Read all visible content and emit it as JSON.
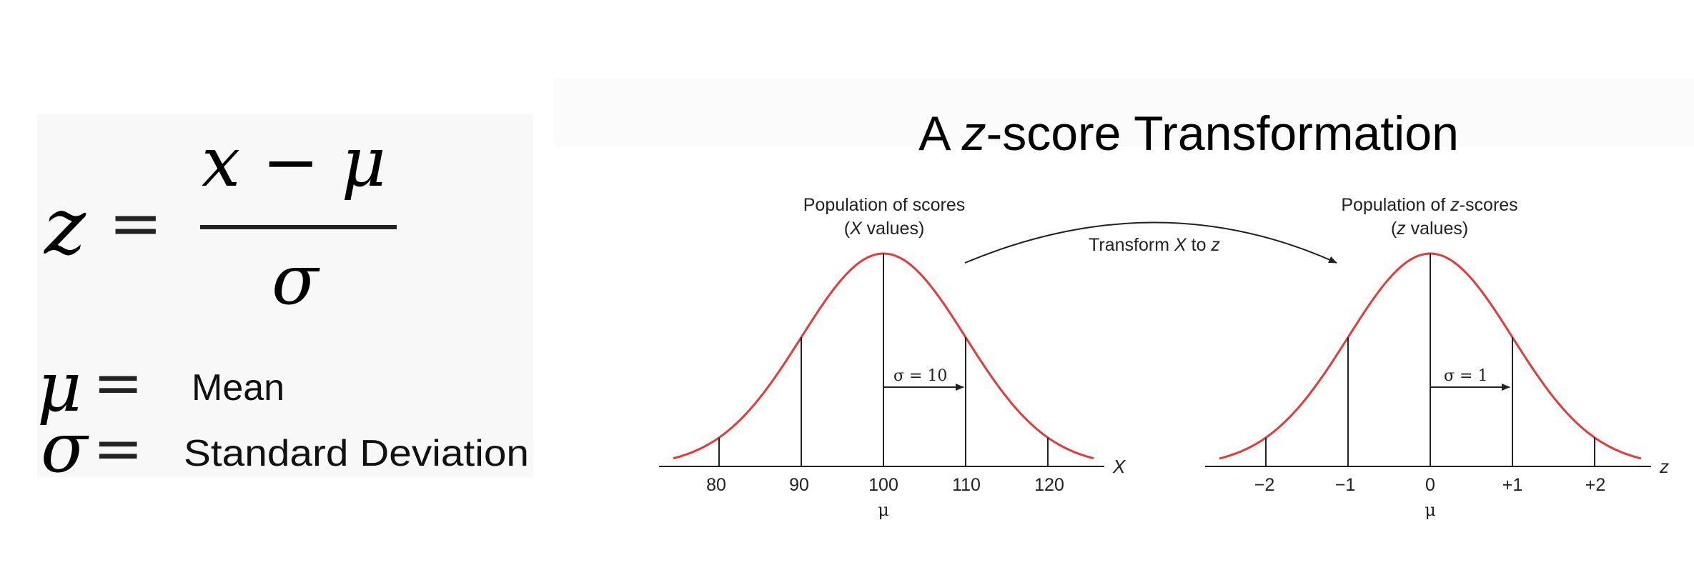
{
  "formula": {
    "lhs": "z",
    "equals": "=",
    "numerator": "x − μ",
    "denominator": "σ"
  },
  "legend": [
    {
      "symbol": "μ",
      "equals": "=",
      "meaning": "Mean"
    },
    {
      "symbol": "σ",
      "equals": "=",
      "meaning": "Standard Deviation"
    }
  ],
  "diagram": {
    "title_prefix": "A ",
    "title_italic": "z",
    "title_suffix": "-score Transformation",
    "transform_label": {
      "a": "Transform ",
      "b": "X",
      "c": " to ",
      "d": "z"
    },
    "left": {
      "heading_line1": "Population of scores",
      "heading_line2_open": "(",
      "heading_line2_var": "X",
      "heading_line2_rest": " values)",
      "sigma_label": "σ = 10",
      "axis_label": "X",
      "ticks": [
        "80",
        "90",
        "100",
        "110",
        "120"
      ],
      "mu_label": "μ"
    },
    "right": {
      "heading_line1_a": "Population of ",
      "heading_line1_var": "z",
      "heading_line1_b": "-scores",
      "heading_line2_open": "(",
      "heading_line2_var": "z",
      "heading_line2_rest": " values)",
      "sigma_label": "σ = 1",
      "axis_label": "z",
      "ticks": [
        "−2",
        "−1",
        "0",
        "+1",
        "+2"
      ],
      "mu_label": "μ"
    },
    "curve_color": "#e03c3c",
    "line_color": "#222222"
  }
}
